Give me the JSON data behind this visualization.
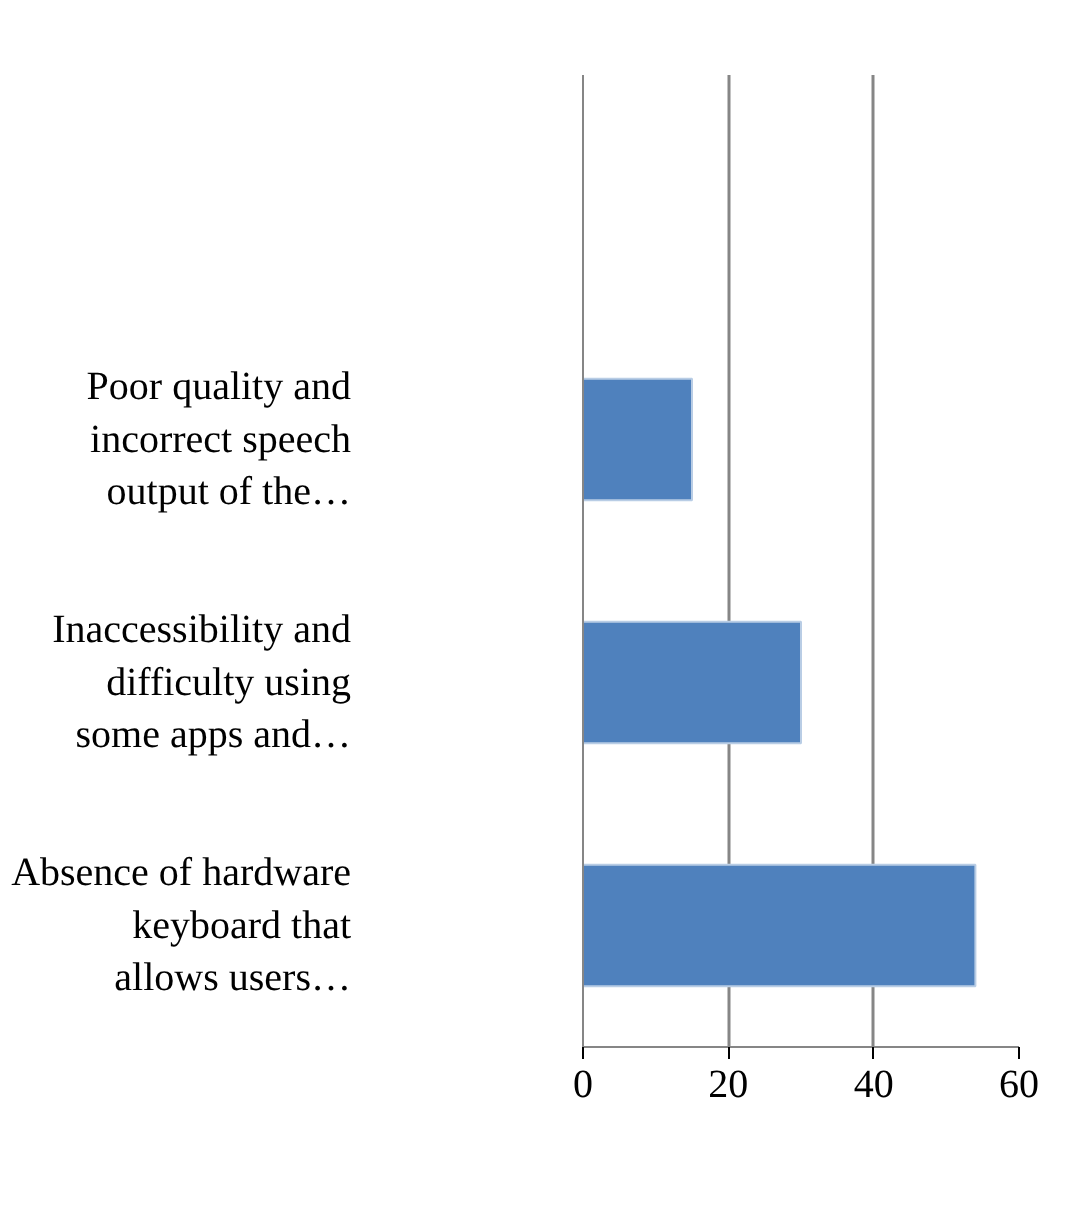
{
  "chart_data": {
    "type": "bar",
    "orientation": "horizontal",
    "categories": [
      null,
      "Poor quality and incorrect speech output of the…",
      "Inaccessibility and difficulty using some apps and…",
      "Absence of hardware keyboard that allows users…"
    ],
    "values": [
      null,
      15,
      30,
      54
    ],
    "color": "#4f81bd",
    "xlim": [
      0,
      60
    ],
    "xticks": [
      0,
      20,
      40,
      60
    ],
    "grid": "x"
  }
}
